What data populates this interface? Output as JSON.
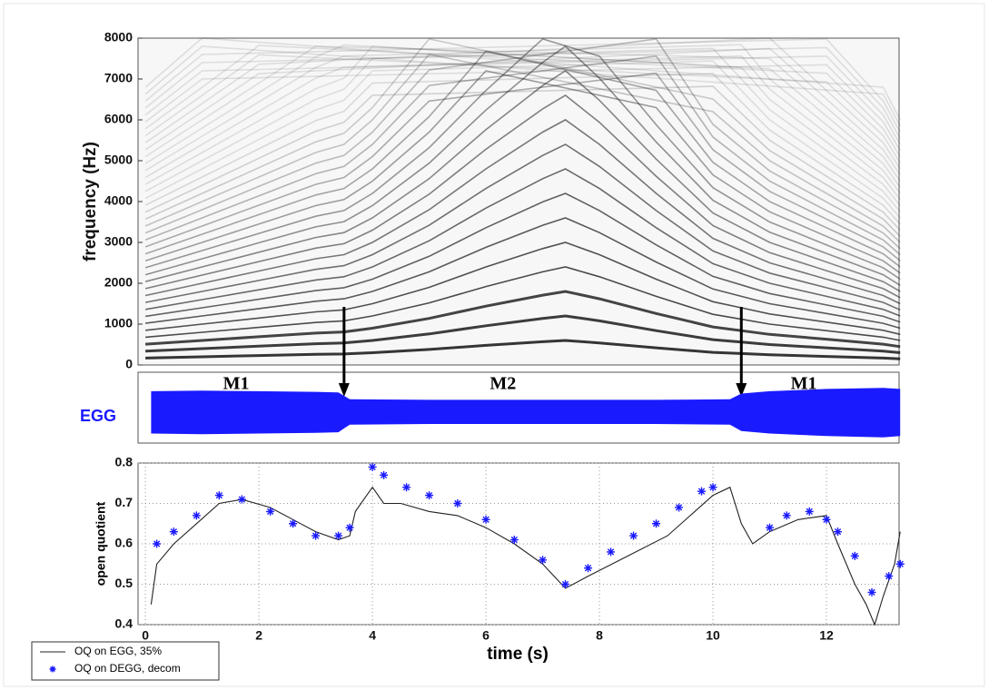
{
  "chart_data": [
    {
      "type": "spectrogram",
      "ylabel": "frequency  (Hz)",
      "xlim": [
        -0.13,
        13.28
      ],
      "ylim": [
        0,
        8000
      ],
      "yticks": [
        0,
        1000,
        2000,
        3000,
        4000,
        5000,
        6000,
        7000,
        8000
      ],
      "series": [
        {
          "x": [
            0,
            1,
            2,
            3,
            3.5,
            4,
            5,
            6,
            7,
            7.4,
            8,
            9,
            10,
            10.5,
            11,
            12,
            13,
            13.3
          ],
          "values": [
            170,
            200,
            230,
            260,
            270,
            300,
            380,
            480,
            570,
            600,
            540,
            420,
            310,
            280,
            250,
            210,
            170,
            150
          ],
          "color": "#222222"
        }
      ],
      "boundaries": [
        3.5,
        10.5
      ]
    },
    {
      "type": "waveform",
      "ylabel": "EGG",
      "color": "#1a1aff",
      "xlim": [
        -0.13,
        13.28
      ],
      "x": [
        0.1,
        1,
        2,
        3,
        3.4,
        3.6,
        5,
        7,
        9,
        10.3,
        10.5,
        11,
        12,
        13,
        13.3
      ],
      "values": [
        0.7,
        0.72,
        0.7,
        0.68,
        0.66,
        0.42,
        0.4,
        0.4,
        0.4,
        0.42,
        0.62,
        0.7,
        0.78,
        0.82,
        0.78
      ],
      "annotations": [
        {
          "text": "M1",
          "x": 1.6
        },
        {
          "text": "M2",
          "x": 6.3
        },
        {
          "text": "M1",
          "x": 11.6
        }
      ]
    },
    {
      "type": "line",
      "xlabel": "time  (s)",
      "ylabel": "open quotient",
      "xlim": [
        -0.13,
        13.28
      ],
      "ylim": [
        0.4,
        0.8
      ],
      "xticks": [
        0,
        2,
        4,
        6,
        8,
        10,
        12
      ],
      "yticks": [
        0.4,
        0.5,
        0.6,
        0.7,
        0.8
      ],
      "grid": true,
      "legend": "bottom-left",
      "series": [
        {
          "name": "OQ on EGG, 35%",
          "color": "#222222",
          "style": "line",
          "x": [
            0.1,
            0.2,
            0.5,
            0.9,
            1.3,
            1.7,
            2.2,
            2.6,
            3,
            3.4,
            3.6,
            3.7,
            3.9,
            4.0,
            4.2,
            4.5,
            5,
            5.5,
            6,
            6.5,
            7,
            7.4,
            7.8,
            8.5,
            9.2,
            9.6,
            10,
            10.3,
            10.5,
            10.7,
            11,
            11.5,
            12,
            12.2,
            12.5,
            12.7,
            12.85,
            13,
            13.2,
            13.3
          ],
          "values": [
            0.45,
            0.55,
            0.6,
            0.65,
            0.7,
            0.71,
            0.69,
            0.66,
            0.63,
            0.61,
            0.62,
            0.68,
            0.72,
            0.74,
            0.7,
            0.7,
            0.68,
            0.67,
            0.64,
            0.6,
            0.55,
            0.49,
            0.52,
            0.57,
            0.62,
            0.67,
            0.72,
            0.74,
            0.65,
            0.6,
            0.63,
            0.66,
            0.67,
            0.6,
            0.5,
            0.45,
            0.4,
            0.47,
            0.55,
            0.63
          ]
        },
        {
          "name": "OQ on DEGG, decom",
          "color": "#1a1aff",
          "style": "star",
          "x": [
            0.2,
            0.5,
            0.9,
            1.3,
            1.7,
            2.2,
            2.6,
            3,
            3.4,
            3.6,
            4.0,
            4.2,
            4.6,
            5,
            5.5,
            6,
            6.5,
            7,
            7.4,
            7.8,
            8.2,
            8.6,
            9,
            9.4,
            9.8,
            10,
            11,
            11.3,
            11.7,
            12,
            12.2,
            12.5,
            12.8,
            13.1,
            13.3
          ],
          "values": [
            0.6,
            0.63,
            0.67,
            0.72,
            0.71,
            0.68,
            0.65,
            0.62,
            0.62,
            0.64,
            0.79,
            0.77,
            0.74,
            0.72,
            0.7,
            0.66,
            0.61,
            0.56,
            0.5,
            0.54,
            0.58,
            0.62,
            0.65,
            0.69,
            0.73,
            0.74,
            0.64,
            0.67,
            0.68,
            0.66,
            0.63,
            0.57,
            0.48,
            0.52,
            0.55
          ]
        }
      ]
    }
  ]
}
